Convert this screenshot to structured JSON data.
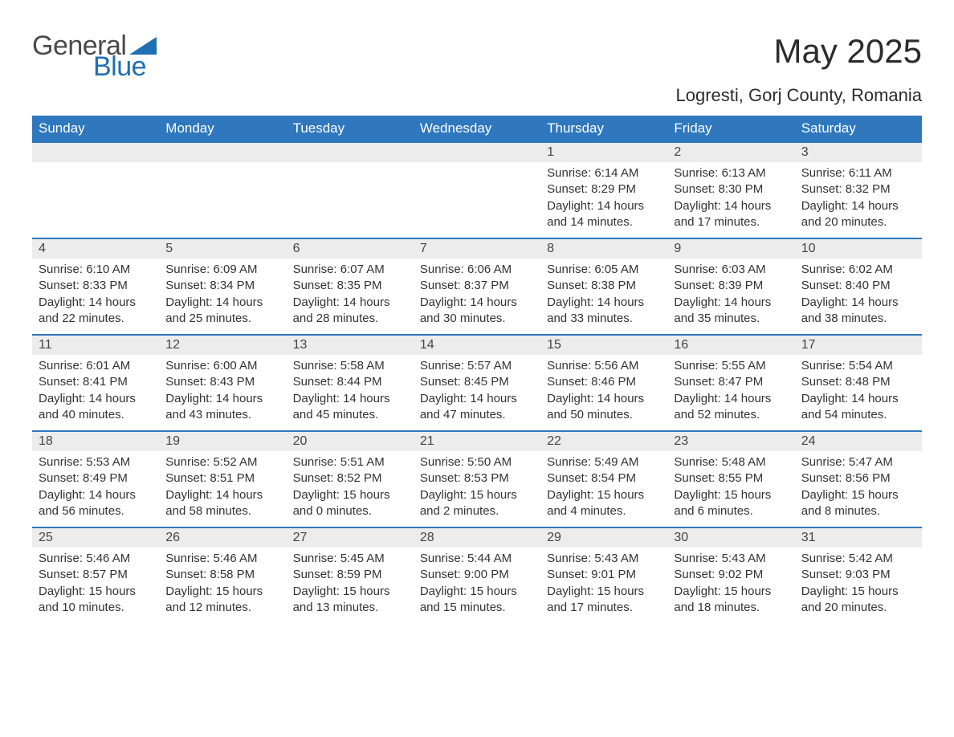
{
  "brand": {
    "part1": "General",
    "part2": "Blue",
    "text_color": "#4a4a4a",
    "accent_color": "#1f6fb2"
  },
  "title": "May 2025",
  "location": "Logresti, Gorj County, Romania",
  "colors": {
    "header_bg": "#2f78bd",
    "header_text": "#ffffff",
    "daynum_bg": "#ececec",
    "border": "#2f78bd",
    "body_text": "#333333",
    "page_bg": "#ffffff"
  },
  "day_headers": [
    "Sunday",
    "Monday",
    "Tuesday",
    "Wednesday",
    "Thursday",
    "Friday",
    "Saturday"
  ],
  "weeks": [
    [
      {
        "n": "",
        "sunrise": "",
        "sunset": "",
        "daylight": ""
      },
      {
        "n": "",
        "sunrise": "",
        "sunset": "",
        "daylight": ""
      },
      {
        "n": "",
        "sunrise": "",
        "sunset": "",
        "daylight": ""
      },
      {
        "n": "",
        "sunrise": "",
        "sunset": "",
        "daylight": ""
      },
      {
        "n": "1",
        "sunrise": "Sunrise: 6:14 AM",
        "sunset": "Sunset: 8:29 PM",
        "daylight": "Daylight: 14 hours and 14 minutes."
      },
      {
        "n": "2",
        "sunrise": "Sunrise: 6:13 AM",
        "sunset": "Sunset: 8:30 PM",
        "daylight": "Daylight: 14 hours and 17 minutes."
      },
      {
        "n": "3",
        "sunrise": "Sunrise: 6:11 AM",
        "sunset": "Sunset: 8:32 PM",
        "daylight": "Daylight: 14 hours and 20 minutes."
      }
    ],
    [
      {
        "n": "4",
        "sunrise": "Sunrise: 6:10 AM",
        "sunset": "Sunset: 8:33 PM",
        "daylight": "Daylight: 14 hours and 22 minutes."
      },
      {
        "n": "5",
        "sunrise": "Sunrise: 6:09 AM",
        "sunset": "Sunset: 8:34 PM",
        "daylight": "Daylight: 14 hours and 25 minutes."
      },
      {
        "n": "6",
        "sunrise": "Sunrise: 6:07 AM",
        "sunset": "Sunset: 8:35 PM",
        "daylight": "Daylight: 14 hours and 28 minutes."
      },
      {
        "n": "7",
        "sunrise": "Sunrise: 6:06 AM",
        "sunset": "Sunset: 8:37 PM",
        "daylight": "Daylight: 14 hours and 30 minutes."
      },
      {
        "n": "8",
        "sunrise": "Sunrise: 6:05 AM",
        "sunset": "Sunset: 8:38 PM",
        "daylight": "Daylight: 14 hours and 33 minutes."
      },
      {
        "n": "9",
        "sunrise": "Sunrise: 6:03 AM",
        "sunset": "Sunset: 8:39 PM",
        "daylight": "Daylight: 14 hours and 35 minutes."
      },
      {
        "n": "10",
        "sunrise": "Sunrise: 6:02 AM",
        "sunset": "Sunset: 8:40 PM",
        "daylight": "Daylight: 14 hours and 38 minutes."
      }
    ],
    [
      {
        "n": "11",
        "sunrise": "Sunrise: 6:01 AM",
        "sunset": "Sunset: 8:41 PM",
        "daylight": "Daylight: 14 hours and 40 minutes."
      },
      {
        "n": "12",
        "sunrise": "Sunrise: 6:00 AM",
        "sunset": "Sunset: 8:43 PM",
        "daylight": "Daylight: 14 hours and 43 minutes."
      },
      {
        "n": "13",
        "sunrise": "Sunrise: 5:58 AM",
        "sunset": "Sunset: 8:44 PM",
        "daylight": "Daylight: 14 hours and 45 minutes."
      },
      {
        "n": "14",
        "sunrise": "Sunrise: 5:57 AM",
        "sunset": "Sunset: 8:45 PM",
        "daylight": "Daylight: 14 hours and 47 minutes."
      },
      {
        "n": "15",
        "sunrise": "Sunrise: 5:56 AM",
        "sunset": "Sunset: 8:46 PM",
        "daylight": "Daylight: 14 hours and 50 minutes."
      },
      {
        "n": "16",
        "sunrise": "Sunrise: 5:55 AM",
        "sunset": "Sunset: 8:47 PM",
        "daylight": "Daylight: 14 hours and 52 minutes."
      },
      {
        "n": "17",
        "sunrise": "Sunrise: 5:54 AM",
        "sunset": "Sunset: 8:48 PM",
        "daylight": "Daylight: 14 hours and 54 minutes."
      }
    ],
    [
      {
        "n": "18",
        "sunrise": "Sunrise: 5:53 AM",
        "sunset": "Sunset: 8:49 PM",
        "daylight": "Daylight: 14 hours and 56 minutes."
      },
      {
        "n": "19",
        "sunrise": "Sunrise: 5:52 AM",
        "sunset": "Sunset: 8:51 PM",
        "daylight": "Daylight: 14 hours and 58 minutes."
      },
      {
        "n": "20",
        "sunrise": "Sunrise: 5:51 AM",
        "sunset": "Sunset: 8:52 PM",
        "daylight": "Daylight: 15 hours and 0 minutes."
      },
      {
        "n": "21",
        "sunrise": "Sunrise: 5:50 AM",
        "sunset": "Sunset: 8:53 PM",
        "daylight": "Daylight: 15 hours and 2 minutes."
      },
      {
        "n": "22",
        "sunrise": "Sunrise: 5:49 AM",
        "sunset": "Sunset: 8:54 PM",
        "daylight": "Daylight: 15 hours and 4 minutes."
      },
      {
        "n": "23",
        "sunrise": "Sunrise: 5:48 AM",
        "sunset": "Sunset: 8:55 PM",
        "daylight": "Daylight: 15 hours and 6 minutes."
      },
      {
        "n": "24",
        "sunrise": "Sunrise: 5:47 AM",
        "sunset": "Sunset: 8:56 PM",
        "daylight": "Daylight: 15 hours and 8 minutes."
      }
    ],
    [
      {
        "n": "25",
        "sunrise": "Sunrise: 5:46 AM",
        "sunset": "Sunset: 8:57 PM",
        "daylight": "Daylight: 15 hours and 10 minutes."
      },
      {
        "n": "26",
        "sunrise": "Sunrise: 5:46 AM",
        "sunset": "Sunset: 8:58 PM",
        "daylight": "Daylight: 15 hours and 12 minutes."
      },
      {
        "n": "27",
        "sunrise": "Sunrise: 5:45 AM",
        "sunset": "Sunset: 8:59 PM",
        "daylight": "Daylight: 15 hours and 13 minutes."
      },
      {
        "n": "28",
        "sunrise": "Sunrise: 5:44 AM",
        "sunset": "Sunset: 9:00 PM",
        "daylight": "Daylight: 15 hours and 15 minutes."
      },
      {
        "n": "29",
        "sunrise": "Sunrise: 5:43 AM",
        "sunset": "Sunset: 9:01 PM",
        "daylight": "Daylight: 15 hours and 17 minutes."
      },
      {
        "n": "30",
        "sunrise": "Sunrise: 5:43 AM",
        "sunset": "Sunset: 9:02 PM",
        "daylight": "Daylight: 15 hours and 18 minutes."
      },
      {
        "n": "31",
        "sunrise": "Sunrise: 5:42 AM",
        "sunset": "Sunset: 9:03 PM",
        "daylight": "Daylight: 15 hours and 20 minutes."
      }
    ]
  ]
}
